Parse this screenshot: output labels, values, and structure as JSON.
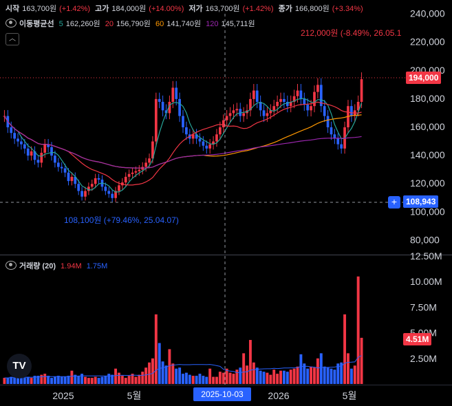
{
  "legend": {
    "open_label": "시작",
    "open_value": "163,700원",
    "open_change": "(+1.42%)",
    "high_label": "고가",
    "high_value": "184,000원",
    "high_change": "(+14.00%)",
    "low_label": "저가",
    "low_value": "163,700원",
    "low_change": "(+1.42%)",
    "close_label": "종가",
    "close_value": "166,800원",
    "close_change": "(+3.34%)",
    "ma_title": "이동평균선",
    "ma": [
      {
        "period": "5",
        "value": "162,260원",
        "color": "#26a69a"
      },
      {
        "period": "20",
        "value": "156,790원",
        "color": "#f23645"
      },
      {
        "period": "60",
        "value": "141,740원",
        "color": "#ff9800"
      },
      {
        "period": "120",
        "value": "145,711원",
        "color": "#9c27b0"
      }
    ],
    "volume_title": "거래량 (20)",
    "volume_value": "1.94M",
    "volume_ma": "1.75M"
  },
  "annotations": {
    "high_label": "212,000원 (-8.49%, 26.05.1",
    "low_label": "108,100원 (+79.46%, 25.04.07)"
  },
  "badges": {
    "price_now": "194,000",
    "price_cursor": "108,943",
    "volume_now": "4.51M",
    "date_cursor": "2025-10-03"
  },
  "colors": {
    "up": "#f23645",
    "down": "#2962ff",
    "bg": "#000000",
    "grid": "#1e222d"
  },
  "chart_data": {
    "type": "candlestick",
    "price_axis": {
      "ylim": [
        70000,
        250000
      ],
      "ticks": [
        "80,000",
        "100,000",
        "120,000",
        "140,000",
        "160,000",
        "180,000",
        "200,000",
        "220,000",
        "240,000"
      ]
    },
    "volume_axis": {
      "ylim": [
        0,
        12500000
      ],
      "ticks": [
        "2.50M",
        "5.00M",
        "7.50M",
        "10.00M",
        "12.50M"
      ]
    },
    "x_ticks": [
      "2025",
      "5월",
      "2026",
      "5월"
    ],
    "closes": [
      168000,
      160000,
      156000,
      152000,
      150000,
      148000,
      145000,
      140000,
      143000,
      137000,
      135000,
      142000,
      148000,
      146000,
      140000,
      135000,
      132000,
      131000,
      128000,
      122000,
      125000,
      120000,
      115000,
      111000,
      115000,
      118000,
      120000,
      124000,
      123000,
      118000,
      115000,
      113000,
      110000,
      115000,
      119000,
      121000,
      125000,
      127000,
      128000,
      129000,
      130000,
      132000,
      135000,
      138000,
      150000,
      180000,
      178000,
      172000,
      170000,
      178000,
      188000,
      180000,
      168000,
      160000,
      155000,
      152000,
      155000,
      152000,
      150000,
      147000,
      145000,
      148000,
      150000,
      155000,
      160000,
      165000,
      168000,
      170000,
      172000,
      173000,
      168000,
      170000,
      172000,
      180000,
      186000,
      178000,
      172000,
      168000,
      170000,
      172000,
      175000,
      178000,
      180000,
      178000,
      175000,
      178000,
      182000,
      186000,
      180000,
      176000,
      172000,
      175000,
      185000,
      190000,
      175000,
      168000,
      160000,
      155000,
      152000,
      148000,
      145000,
      160000,
      175000,
      168000,
      172000,
      178000,
      194000
    ],
    "volume": [
      0.6,
      0.6,
      0.7,
      0.6,
      0.8,
      0.7,
      0.6,
      0.7,
      0.6,
      0.8,
      0.8,
      0.9,
      1.0,
      0.8,
      0.6,
      0.7,
      0.8,
      0.7,
      0.7,
      0.8,
      1.3,
      0.9,
      0.8,
      1.0,
      0.7,
      0.6,
      0.6,
      0.7,
      0.6,
      0.7,
      0.8,
      1.0,
      0.9,
      1.5,
      1.1,
      0.8,
      0.6,
      0.8,
      1.0,
      0.7,
      0.9,
      1.2,
      1.6,
      2.1,
      2.5,
      6.8,
      4.0,
      2.2,
      1.8,
      3.4,
      2.0,
      1.5,
      1.6,
      1.0,
      1.1,
      0.9,
      0.8,
      0.8,
      1.0,
      0.8,
      0.7,
      1.5,
      0.7,
      0.7,
      1.2,
      1.1,
      1.5,
      1.1,
      1.0,
      1.4,
      1.6,
      3.0,
      1.8,
      4.3,
      2.1,
      1.6,
      1.3,
      1.2,
      1.1,
      0.9,
      1.4,
      1.0,
      1.3,
      1.3,
      1.2,
      1.4,
      1.5,
      1.7,
      2.9,
      2.0,
      1.5,
      1.7,
      1.6,
      2.5,
      3.0,
      1.7,
      1.6,
      1.5,
      1.4,
      2.0,
      2.1,
      6.8,
      3.0,
      1.5,
      1.8,
      10.5,
      4.51
    ],
    "volume_unit": "M"
  }
}
